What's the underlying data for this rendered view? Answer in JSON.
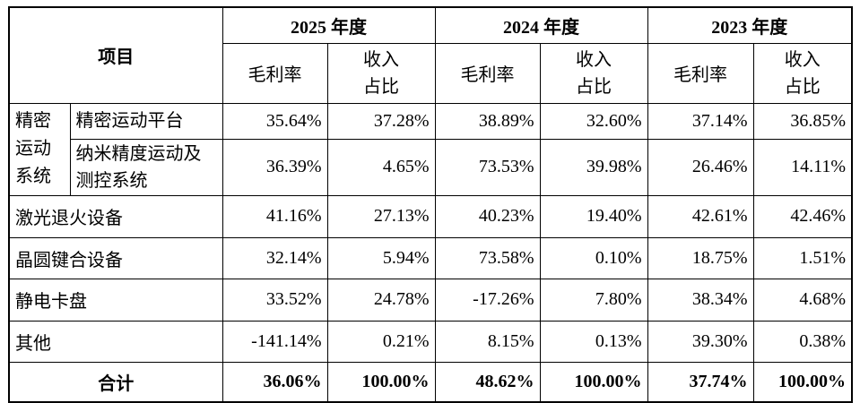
{
  "table": {
    "header": {
      "item": "项目",
      "years": [
        "2025 年度",
        "2024 年度",
        "2023 年度"
      ],
      "metrics": [
        "毛利率",
        "收入占比"
      ]
    },
    "group": {
      "label": "精密运动系统",
      "rows": [
        {
          "label": "精密运动平台",
          "values": [
            "35.64%",
            "37.28%",
            "38.89%",
            "32.60%",
            "37.14%",
            "36.85%"
          ]
        },
        {
          "label": "纳米精度运动及测控系统",
          "values": [
            "36.39%",
            "4.65%",
            "73.53%",
            "39.98%",
            "26.46%",
            "14.11%"
          ]
        }
      ]
    },
    "rows": [
      {
        "label": "激光退火设备",
        "values": [
          "41.16%",
          "27.13%",
          "40.23%",
          "19.40%",
          "42.61%",
          "42.46%"
        ]
      },
      {
        "label": "晶圆键合设备",
        "values": [
          "32.14%",
          "5.94%",
          "73.58%",
          "0.10%",
          "18.75%",
          "1.51%"
        ]
      },
      {
        "label": "静电卡盘",
        "values": [
          "33.52%",
          "24.78%",
          "-17.26%",
          "7.80%",
          "38.34%",
          "4.68%"
        ]
      },
      {
        "label": "其他",
        "values": [
          "-141.14%",
          "0.21%",
          "8.15%",
          "0.13%",
          "39.30%",
          "0.38%"
        ]
      }
    ],
    "total": {
      "label": "合计",
      "values": [
        "36.06%",
        "100.00%",
        "48.62%",
        "100.00%",
        "37.74%",
        "100.00%"
      ]
    }
  }
}
